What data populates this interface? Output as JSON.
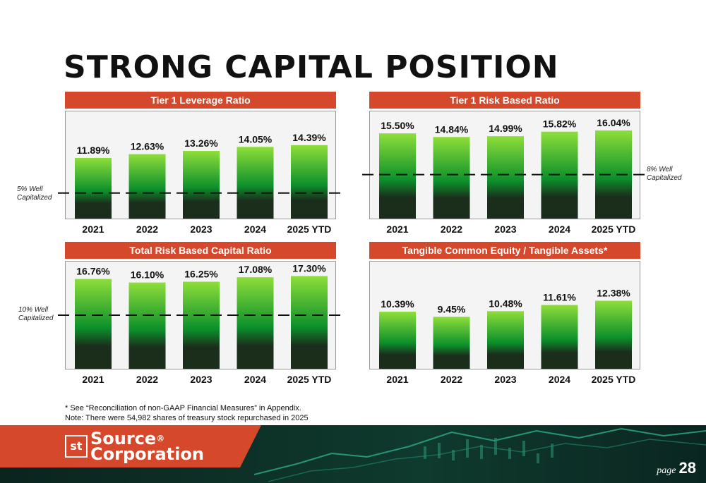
{
  "title": "STRONG CAPITAL POSITION",
  "chart_data": [
    {
      "type": "bar",
      "title": "Tier 1 Leverage Ratio",
      "categories": [
        "2021",
        "2022",
        "2023",
        "2024",
        "2025 YTD"
      ],
      "values": [
        11.89,
        12.63,
        13.26,
        14.05,
        14.39
      ],
      "value_labels": [
        "11.89%",
        "12.63%",
        "13.26%",
        "14.05%",
        "14.39%"
      ],
      "reference_line": {
        "value": 5,
        "label": "5% Well Capitalized",
        "side": "left"
      },
      "ylim": [
        0,
        21
      ]
    },
    {
      "type": "bar",
      "title": "Tier 1 Risk Based Ratio",
      "categories": [
        "2021",
        "2022",
        "2023",
        "2024",
        "2025 YTD"
      ],
      "values": [
        15.5,
        14.84,
        14.99,
        15.82,
        16.04
      ],
      "value_labels": [
        "15.50%",
        "14.84%",
        "14.99%",
        "15.82%",
        "16.04%"
      ],
      "reference_line": {
        "value": 8,
        "label": "8% Well Capitalized",
        "side": "right"
      },
      "ylim": [
        0,
        19.5
      ]
    },
    {
      "type": "bar",
      "title": "Total Risk Based Capital Ratio",
      "categories": [
        "2021",
        "2022",
        "2023",
        "2024",
        "2025 YTD"
      ],
      "values": [
        16.76,
        16.1,
        16.25,
        17.08,
        17.3
      ],
      "value_labels": [
        "16.76%",
        "16.10%",
        "16.25%",
        "17.08%",
        "17.30%"
      ],
      "reference_line": {
        "value": 10,
        "label": "10% Well Capitalized",
        "side": "left"
      },
      "ylim": [
        0,
        20
      ]
    },
    {
      "type": "bar",
      "title": "Tangible Common Equity / Tangible Assets*",
      "categories": [
        "2021",
        "2022",
        "2023",
        "2024",
        "2025 YTD"
      ],
      "values": [
        10.39,
        9.45,
        10.48,
        11.61,
        12.38
      ],
      "value_labels": [
        "10.39%",
        "9.45%",
        "10.48%",
        "11.61%",
        "12.38%"
      ],
      "ylim": [
        0,
        19.5
      ]
    }
  ],
  "footnotes": [
    "* See “Reconciliation of non-GAAP Financial Measures” in Appendix.",
    "Note: There were 54,982 shares of treasury stock repurchased in 2025"
  ],
  "footer": {
    "logo_line1": "Source",
    "logo_line2": "Corporation",
    "logo_mark": "st",
    "logo_reg": "®",
    "page_word": "page",
    "page_number": "28"
  },
  "colors": {
    "header_bg": "#d6482b",
    "bar_top": "#8ede3a",
    "bar_mid": "#0b8f2a",
    "bar_bottom": "#1b2e1c",
    "footer_bg": "#0b2a23"
  }
}
